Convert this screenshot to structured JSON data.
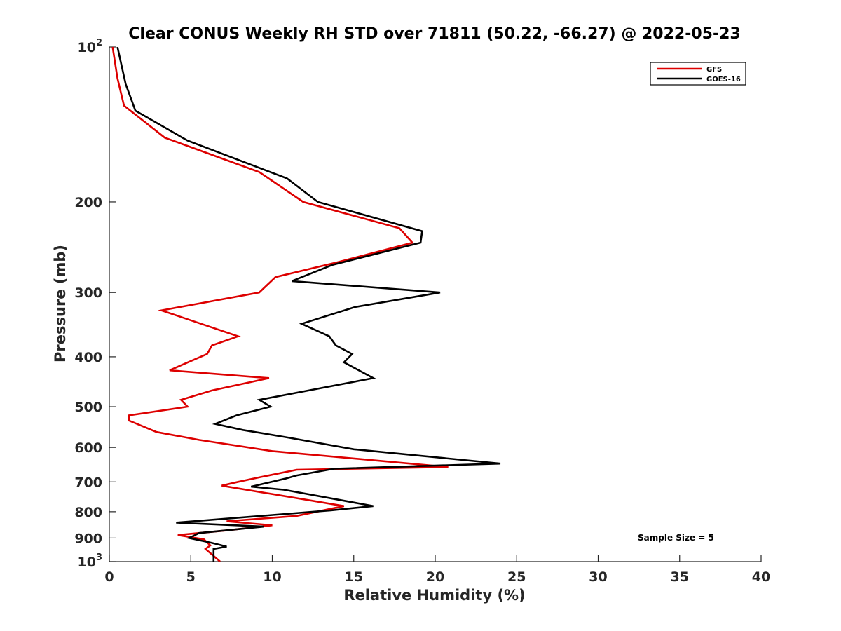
{
  "chart_data": {
    "type": "line",
    "title": "Clear CONUS Weekly RH STD over 71811 (50.22, -66.27) @ 2022-05-23",
    "xlabel": "Relative Humidity (%)",
    "ylabel": "Pressure (mb)",
    "xlim": [
      0,
      40
    ],
    "ylim": [
      100,
      1000
    ],
    "y_scale": "log",
    "y_reversed": true,
    "x_ticks": [
      0,
      5,
      10,
      15,
      20,
      25,
      30,
      35,
      40
    ],
    "x_tick_labels": [
      "0",
      "5",
      "10",
      "15",
      "20",
      "25",
      "30",
      "35",
      "40"
    ],
    "y_ticks": [
      100,
      200,
      300,
      400,
      500,
      600,
      700,
      800,
      900,
      1000
    ],
    "y_tick_labels": [
      {
        "base": "10",
        "exp": "2"
      },
      {
        "base": "200",
        "exp": ""
      },
      {
        "base": "300",
        "exp": ""
      },
      {
        "base": "400",
        "exp": ""
      },
      {
        "base": "500",
        "exp": ""
      },
      {
        "base": "600",
        "exp": ""
      },
      {
        "base": "700",
        "exp": ""
      },
      {
        "base": "800",
        "exp": ""
      },
      {
        "base": "900",
        "exp": ""
      },
      {
        "base": "10",
        "exp": "3"
      }
    ],
    "grid": false,
    "legend_position": "top-right",
    "annotation": "Sample Size = 5",
    "series": [
      {
        "name": "GFS",
        "color": "#dd0000",
        "points": [
          [
            0.2,
            100
          ],
          [
            0.5,
            115
          ],
          [
            0.9,
            130
          ],
          [
            3.4,
            150
          ],
          [
            9.2,
            175
          ],
          [
            11.9,
            200
          ],
          [
            17.8,
            225
          ],
          [
            18.6,
            240
          ],
          [
            14.0,
            262
          ],
          [
            10.2,
            280
          ],
          [
            9.2,
            300
          ],
          [
            3.2,
            325
          ],
          [
            7.9,
            365
          ],
          [
            6.3,
            380
          ],
          [
            6.0,
            395
          ],
          [
            3.7,
            425
          ],
          [
            9.8,
            440
          ],
          [
            6.3,
            465
          ],
          [
            4.4,
            485
          ],
          [
            4.8,
            500
          ],
          [
            1.2,
            520
          ],
          [
            1.2,
            532
          ],
          [
            2.9,
            560
          ],
          [
            5.5,
            580
          ],
          [
            10.0,
            610
          ],
          [
            20.8,
            655
          ],
          [
            11.5,
            663
          ],
          [
            9.3,
            685
          ],
          [
            7.9,
            700
          ],
          [
            6.9,
            712
          ],
          [
            14.4,
            780
          ],
          [
            11.5,
            815
          ],
          [
            7.2,
            835
          ],
          [
            10.0,
            850
          ],
          [
            7.2,
            870
          ],
          [
            4.2,
            888
          ],
          [
            5.8,
            905
          ],
          [
            6.2,
            930
          ],
          [
            5.9,
            945
          ],
          [
            6.8,
            1000
          ]
        ]
      },
      {
        "name": "GOES-16",
        "color": "#000000",
        "points": [
          [
            0.5,
            100
          ],
          [
            1.0,
            118
          ],
          [
            1.6,
            133
          ],
          [
            4.8,
            152
          ],
          [
            10.9,
            180
          ],
          [
            12.8,
            200
          ],
          [
            19.2,
            228
          ],
          [
            19.1,
            240
          ],
          [
            13.7,
            265
          ],
          [
            11.2,
            285
          ],
          [
            20.3,
            300
          ],
          [
            15.1,
            320
          ],
          [
            11.8,
            345
          ],
          [
            13.5,
            365
          ],
          [
            13.9,
            380
          ],
          [
            14.9,
            395
          ],
          [
            14.4,
            410
          ],
          [
            16.2,
            440
          ],
          [
            9.2,
            485
          ],
          [
            9.9,
            500
          ],
          [
            7.8,
            520
          ],
          [
            6.5,
            540
          ],
          [
            8.2,
            555
          ],
          [
            11.1,
            575
          ],
          [
            15.0,
            605
          ],
          [
            24.0,
            645
          ],
          [
            13.8,
            660
          ],
          [
            11.5,
            680
          ],
          [
            10.8,
            690
          ],
          [
            8.7,
            715
          ],
          [
            10.7,
            725
          ],
          [
            16.2,
            780
          ],
          [
            13.6,
            795
          ],
          [
            4.1,
            840
          ],
          [
            9.5,
            855
          ],
          [
            5.5,
            880
          ],
          [
            4.9,
            900
          ],
          [
            6.3,
            920
          ],
          [
            7.2,
            935
          ],
          [
            6.4,
            945
          ],
          [
            6.4,
            1000
          ]
        ]
      }
    ]
  }
}
